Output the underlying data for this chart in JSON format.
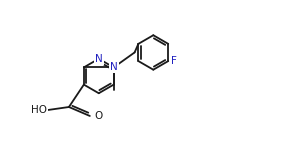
{
  "background_color": "#ffffff",
  "line_color": "#1a1a1a",
  "N_color": "#2020c0",
  "F_color": "#2020c0",
  "bond_lw": 1.3,
  "font_size": 7.5,
  "figsize": [
    3.02,
    1.52
  ],
  "dpi": 100,
  "xlim": [
    -2.0,
    5.5
  ],
  "ylim": [
    -2.5,
    2.5
  ]
}
